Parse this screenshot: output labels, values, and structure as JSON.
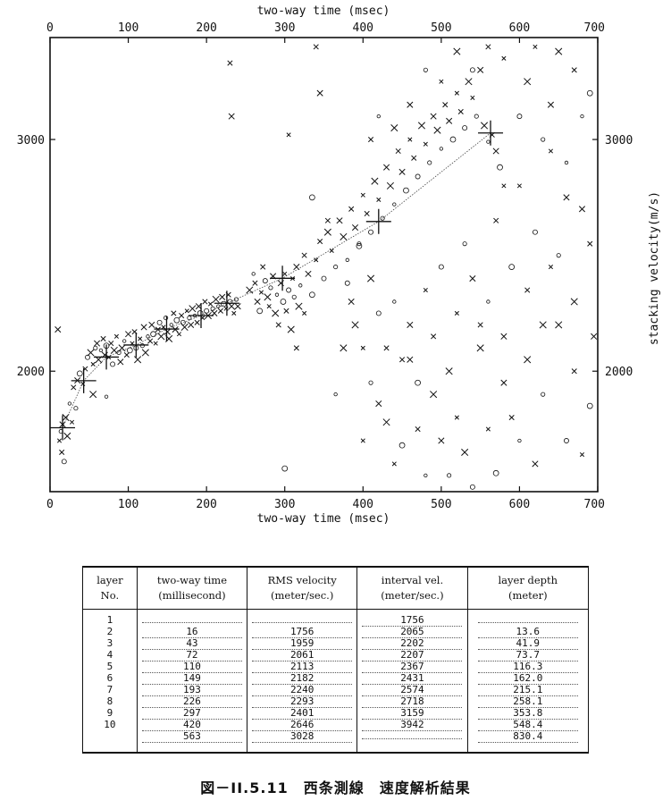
{
  "chart_data": {
    "type": "scatter",
    "xlabel_top": "two-way time (msec)",
    "xlabel_bottom": "two-way time (msec)",
    "ylabel": "stacking velocity(m/s)",
    "xlim": [
      0,
      700
    ],
    "ylim": [
      1480,
      3440
    ],
    "x_ticks": [
      0,
      100,
      200,
      300,
      400,
      500,
      600,
      700
    ],
    "y_ticks": [
      2000,
      3000
    ],
    "grid": false,
    "picks": {
      "x": [
        16,
        43,
        72,
        110,
        149,
        193,
        226,
        297,
        420,
        563
      ],
      "y": [
        1756,
        1959,
        2061,
        2113,
        2182,
        2240,
        2293,
        2401,
        2646,
        3028
      ]
    },
    "scatter_points": [
      [
        12,
        1700
      ],
      [
        14,
        1740
      ],
      [
        16,
        1770
      ],
      [
        20,
        1800
      ],
      [
        25,
        1860
      ],
      [
        30,
        1930
      ],
      [
        35,
        1960
      ],
      [
        38,
        1990
      ],
      [
        42,
        1945
      ],
      [
        45,
        2010
      ],
      [
        48,
        2060
      ],
      [
        52,
        2080
      ],
      [
        55,
        2030
      ],
      [
        58,
        2100
      ],
      [
        60,
        2120
      ],
      [
        62,
        2050
      ],
      [
        65,
        2090
      ],
      [
        68,
        2140
      ],
      [
        70,
        2070
      ],
      [
        72,
        2110
      ],
      [
        75,
        2060
      ],
      [
        78,
        2120
      ],
      [
        80,
        2030
      ],
      [
        82,
        2090
      ],
      [
        85,
        2150
      ],
      [
        88,
        2080
      ],
      [
        90,
        2040
      ],
      [
        92,
        2100
      ],
      [
        95,
        2130
      ],
      [
        98,
        2070
      ],
      [
        100,
        2160
      ],
      [
        102,
        2090
      ],
      [
        105,
        2120
      ],
      [
        108,
        2170
      ],
      [
        110,
        2100
      ],
      [
        112,
        2050
      ],
      [
        115,
        2140
      ],
      [
        118,
        2110
      ],
      [
        120,
        2190
      ],
      [
        122,
        2080
      ],
      [
        125,
        2150
      ],
      [
        128,
        2130
      ],
      [
        130,
        2200
      ],
      [
        132,
        2160
      ],
      [
        135,
        2120
      ],
      [
        138,
        2180
      ],
      [
        140,
        2210
      ],
      [
        142,
        2150
      ],
      [
        145,
        2190
      ],
      [
        148,
        2230
      ],
      [
        150,
        2170
      ],
      [
        152,
        2140
      ],
      [
        155,
        2200
      ],
      [
        158,
        2250
      ],
      [
        160,
        2180
      ],
      [
        162,
        2220
      ],
      [
        165,
        2160
      ],
      [
        168,
        2240
      ],
      [
        170,
        2210
      ],
      [
        172,
        2190
      ],
      [
        175,
        2260
      ],
      [
        178,
        2230
      ],
      [
        180,
        2200
      ],
      [
        182,
        2270
      ],
      [
        185,
        2240
      ],
      [
        188,
        2210
      ],
      [
        190,
        2280
      ],
      [
        192,
        2250
      ],
      [
        195,
        2230
      ],
      [
        198,
        2300
      ],
      [
        200,
        2260
      ],
      [
        202,
        2240
      ],
      [
        205,
        2290
      ],
      [
        208,
        2270
      ],
      [
        210,
        2250
      ],
      [
        212,
        2310
      ],
      [
        215,
        2280
      ],
      [
        218,
        2260
      ],
      [
        220,
        2320
      ],
      [
        222,
        2290
      ],
      [
        225,
        2270
      ],
      [
        228,
        2330
      ],
      [
        230,
        2300
      ],
      [
        232,
        2280
      ],
      [
        235,
        2250
      ],
      [
        238,
        2310
      ],
      [
        240,
        2280
      ],
      [
        255,
        2350
      ],
      [
        260,
        2420
      ],
      [
        262,
        2380
      ],
      [
        265,
        2300
      ],
      [
        268,
        2260
      ],
      [
        270,
        2340
      ],
      [
        272,
        2450
      ],
      [
        275,
        2390
      ],
      [
        278,
        2320
      ],
      [
        280,
        2280
      ],
      [
        282,
        2360
      ],
      [
        285,
        2410
      ],
      [
        288,
        2250
      ],
      [
        290,
        2330
      ],
      [
        292,
        2200
      ],
      [
        295,
        2380
      ],
      [
        298,
        2300
      ],
      [
        300,
        2420
      ],
      [
        302,
        2260
      ],
      [
        305,
        2350
      ],
      [
        308,
        2180
      ],
      [
        310,
        2400
      ],
      [
        312,
        2320
      ],
      [
        315,
        2450
      ],
      [
        318,
        2280
      ],
      [
        320,
        2370
      ],
      [
        325,
        2500
      ],
      [
        330,
        2420
      ],
      [
        335,
        2330
      ],
      [
        340,
        2480
      ],
      [
        345,
        2560
      ],
      [
        350,
        2400
      ],
      [
        355,
        2600
      ],
      [
        360,
        2520
      ],
      [
        365,
        2450
      ],
      [
        370,
        2650
      ],
      [
        375,
        2580
      ],
      [
        380,
        2480
      ],
      [
        385,
        2700
      ],
      [
        390,
        2620
      ],
      [
        395,
        2540
      ],
      [
        400,
        2760
      ],
      [
        405,
        2680
      ],
      [
        410,
        2600
      ],
      [
        415,
        2820
      ],
      [
        420,
        2740
      ],
      [
        425,
        2660
      ],
      [
        430,
        2880
      ],
      [
        435,
        2800
      ],
      [
        440,
        2720
      ],
      [
        445,
        2950
      ],
      [
        450,
        2860
      ],
      [
        455,
        2780
      ],
      [
        460,
        3000
      ],
      [
        465,
        2920
      ],
      [
        470,
        2840
      ],
      [
        475,
        3060
      ],
      [
        480,
        2980
      ],
      [
        485,
        2900
      ],
      [
        490,
        3100
      ],
      [
        495,
        3040
      ],
      [
        500,
        2960
      ],
      [
        505,
        3150
      ],
      [
        510,
        3080
      ],
      [
        515,
        3000
      ],
      [
        520,
        3200
      ],
      [
        525,
        3120
      ],
      [
        530,
        3050
      ],
      [
        535,
        3250
      ],
      [
        540,
        3180
      ],
      [
        545,
        3100
      ],
      [
        550,
        3300
      ],
      [
        555,
        3060
      ],
      [
        560,
        2990
      ],
      [
        565,
        3020
      ],
      [
        570,
        2950
      ],
      [
        575,
        2880
      ],
      [
        580,
        2800
      ],
      [
        15,
        1650
      ],
      [
        18,
        1610
      ],
      [
        22,
        1720
      ],
      [
        28,
        1780
      ],
      [
        33,
        1840
      ],
      [
        10,
        2180
      ],
      [
        55,
        1900
      ],
      [
        72,
        1890
      ],
      [
        230,
        3330
      ],
      [
        232,
        3100
      ],
      [
        300,
        1580
      ],
      [
        305,
        3020
      ],
      [
        340,
        3400
      ],
      [
        380,
        2380
      ],
      [
        390,
        2200
      ],
      [
        400,
        2100
      ],
      [
        410,
        1950
      ],
      [
        420,
        1860
      ],
      [
        430,
        1780
      ],
      [
        440,
        2300
      ],
      [
        450,
        2050
      ],
      [
        460,
        2200
      ],
      [
        470,
        1950
      ],
      [
        480,
        2350
      ],
      [
        490,
        2150
      ],
      [
        500,
        2450
      ],
      [
        510,
        2000
      ],
      [
        520,
        2250
      ],
      [
        530,
        2550
      ],
      [
        540,
        2400
      ],
      [
        550,
        2100
      ],
      [
        560,
        2300
      ],
      [
        570,
        2650
      ],
      [
        580,
        2150
      ],
      [
        590,
        2450
      ],
      [
        600,
        2800
      ],
      [
        610,
        2350
      ],
      [
        620,
        2600
      ],
      [
        630,
        2200
      ],
      [
        640,
        2950
      ],
      [
        650,
        2500
      ],
      [
        660,
        2750
      ],
      [
        670,
        2300
      ],
      [
        680,
        3100
      ],
      [
        690,
        2550
      ],
      [
        695,
        2150
      ],
      [
        690,
        1850
      ],
      [
        680,
        1640
      ],
      [
        670,
        2000
      ],
      [
        660,
        1700
      ],
      [
        650,
        2200
      ],
      [
        640,
        2450
      ],
      [
        630,
        1900
      ],
      [
        620,
        1600
      ],
      [
        610,
        2050
      ],
      [
        600,
        1700
      ],
      [
        590,
        1800
      ],
      [
        580,
        1950
      ],
      [
        570,
        1560
      ],
      [
        560,
        1750
      ],
      [
        550,
        2200
      ],
      [
        540,
        1500
      ],
      [
        530,
        1650
      ],
      [
        520,
        1800
      ],
      [
        510,
        1550
      ],
      [
        500,
        1700
      ],
      [
        490,
        1900
      ],
      [
        480,
        1550
      ],
      [
        470,
        1750
      ],
      [
        460,
        2050
      ],
      [
        450,
        1680
      ],
      [
        440,
        1600
      ],
      [
        430,
        2100
      ],
      [
        420,
        2250
      ],
      [
        410,
        2400
      ],
      [
        400,
        1700
      ],
      [
        395,
        2550
      ],
      [
        385,
        2300
      ],
      [
        375,
        2100
      ],
      [
        365,
        1900
      ],
      [
        355,
        2650
      ],
      [
        345,
        3200
      ],
      [
        335,
        2750
      ],
      [
        325,
        2250
      ],
      [
        315,
        2100
      ],
      [
        600,
        3100
      ],
      [
        610,
        3250
      ],
      [
        620,
        3400
      ],
      [
        630,
        3000
      ],
      [
        640,
        3150
      ],
      [
        650,
        3380
      ],
      [
        660,
        2900
      ],
      [
        670,
        3300
      ],
      [
        680,
        2700
      ],
      [
        690,
        3200
      ],
      [
        580,
        3350
      ],
      [
        560,
        3400
      ],
      [
        540,
        3300
      ],
      [
        520,
        3380
      ],
      [
        500,
        3250
      ],
      [
        480,
        3300
      ],
      [
        460,
        3150
      ],
      [
        440,
        3050
      ],
      [
        420,
        3100
      ],
      [
        410,
        3000
      ]
    ],
    "interval_trend": {
      "x": [
        16,
        43,
        72,
        110,
        149,
        193,
        226,
        297,
        420,
        563
      ],
      "y": [
        1756,
        1959,
        2061,
        2113,
        2182,
        2240,
        2293,
        2401,
        2646,
        3028
      ]
    }
  },
  "table": {
    "headers": [
      {
        "line1": "layer",
        "line2": "No."
      },
      {
        "line1": "two-way time",
        "line2": "(millisecond)"
      },
      {
        "line1": "RMS velocity",
        "line2": "(meter/sec.)"
      },
      {
        "line1": "interval vel.",
        "line2": "(meter/sec.)"
      },
      {
        "line1": "layer depth",
        "line2": "(meter)"
      }
    ],
    "rows": [
      [
        "1",
        "",
        "",
        "1756",
        ""
      ],
      [
        "2",
        "16",
        "1756",
        "2065",
        "13.6"
      ],
      [
        "3",
        "43",
        "1959",
        "2202",
        "41.9"
      ],
      [
        "4",
        "72",
        "2061",
        "2207",
        "73.7"
      ],
      [
        "5",
        "110",
        "2113",
        "2367",
        "116.3"
      ],
      [
        "6",
        "149",
        "2182",
        "2431",
        "162.0"
      ],
      [
        "7",
        "193",
        "2240",
        "2574",
        "215.1"
      ],
      [
        "8",
        "226",
        "2293",
        "2718",
        "258.1"
      ],
      [
        "9",
        "297",
        "2401",
        "3159",
        "353.8"
      ],
      [
        "10",
        "420",
        "2646",
        "3942",
        "548.4"
      ],
      [
        "",
        "563",
        "3028",
        "",
        "830.4"
      ]
    ]
  },
  "caption": "図－II.5.11　西条測線　速度解析結果"
}
